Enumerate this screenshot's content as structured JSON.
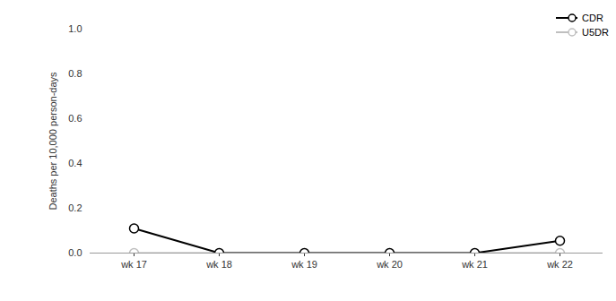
{
  "chart_data": {
    "type": "line",
    "categories": [
      "wk 17",
      "wk 18",
      "wk 19",
      "wk 20",
      "wk 21",
      "wk 22"
    ],
    "series": [
      {
        "name": "CDR",
        "color": "#000000",
        "marker": "circle",
        "values": [
          0.11,
          0,
          0,
          0,
          0,
          0.055
        ]
      },
      {
        "name": "U5DR",
        "color": "#bfbfbf",
        "marker": "circle",
        "values": [
          0,
          0,
          0,
          0,
          0,
          0
        ]
      }
    ],
    "ylabel": "Deaths per 10,000 person-days",
    "ylim": [
      0,
      1
    ],
    "yticks": [
      {
        "value": 0,
        "label": "0.0"
      },
      0.2,
      0.4,
      0.6,
      0.8,
      {
        "value": 1,
        "label": "1.0"
      }
    ],
    "legend": "top-right",
    "grid": false
  }
}
